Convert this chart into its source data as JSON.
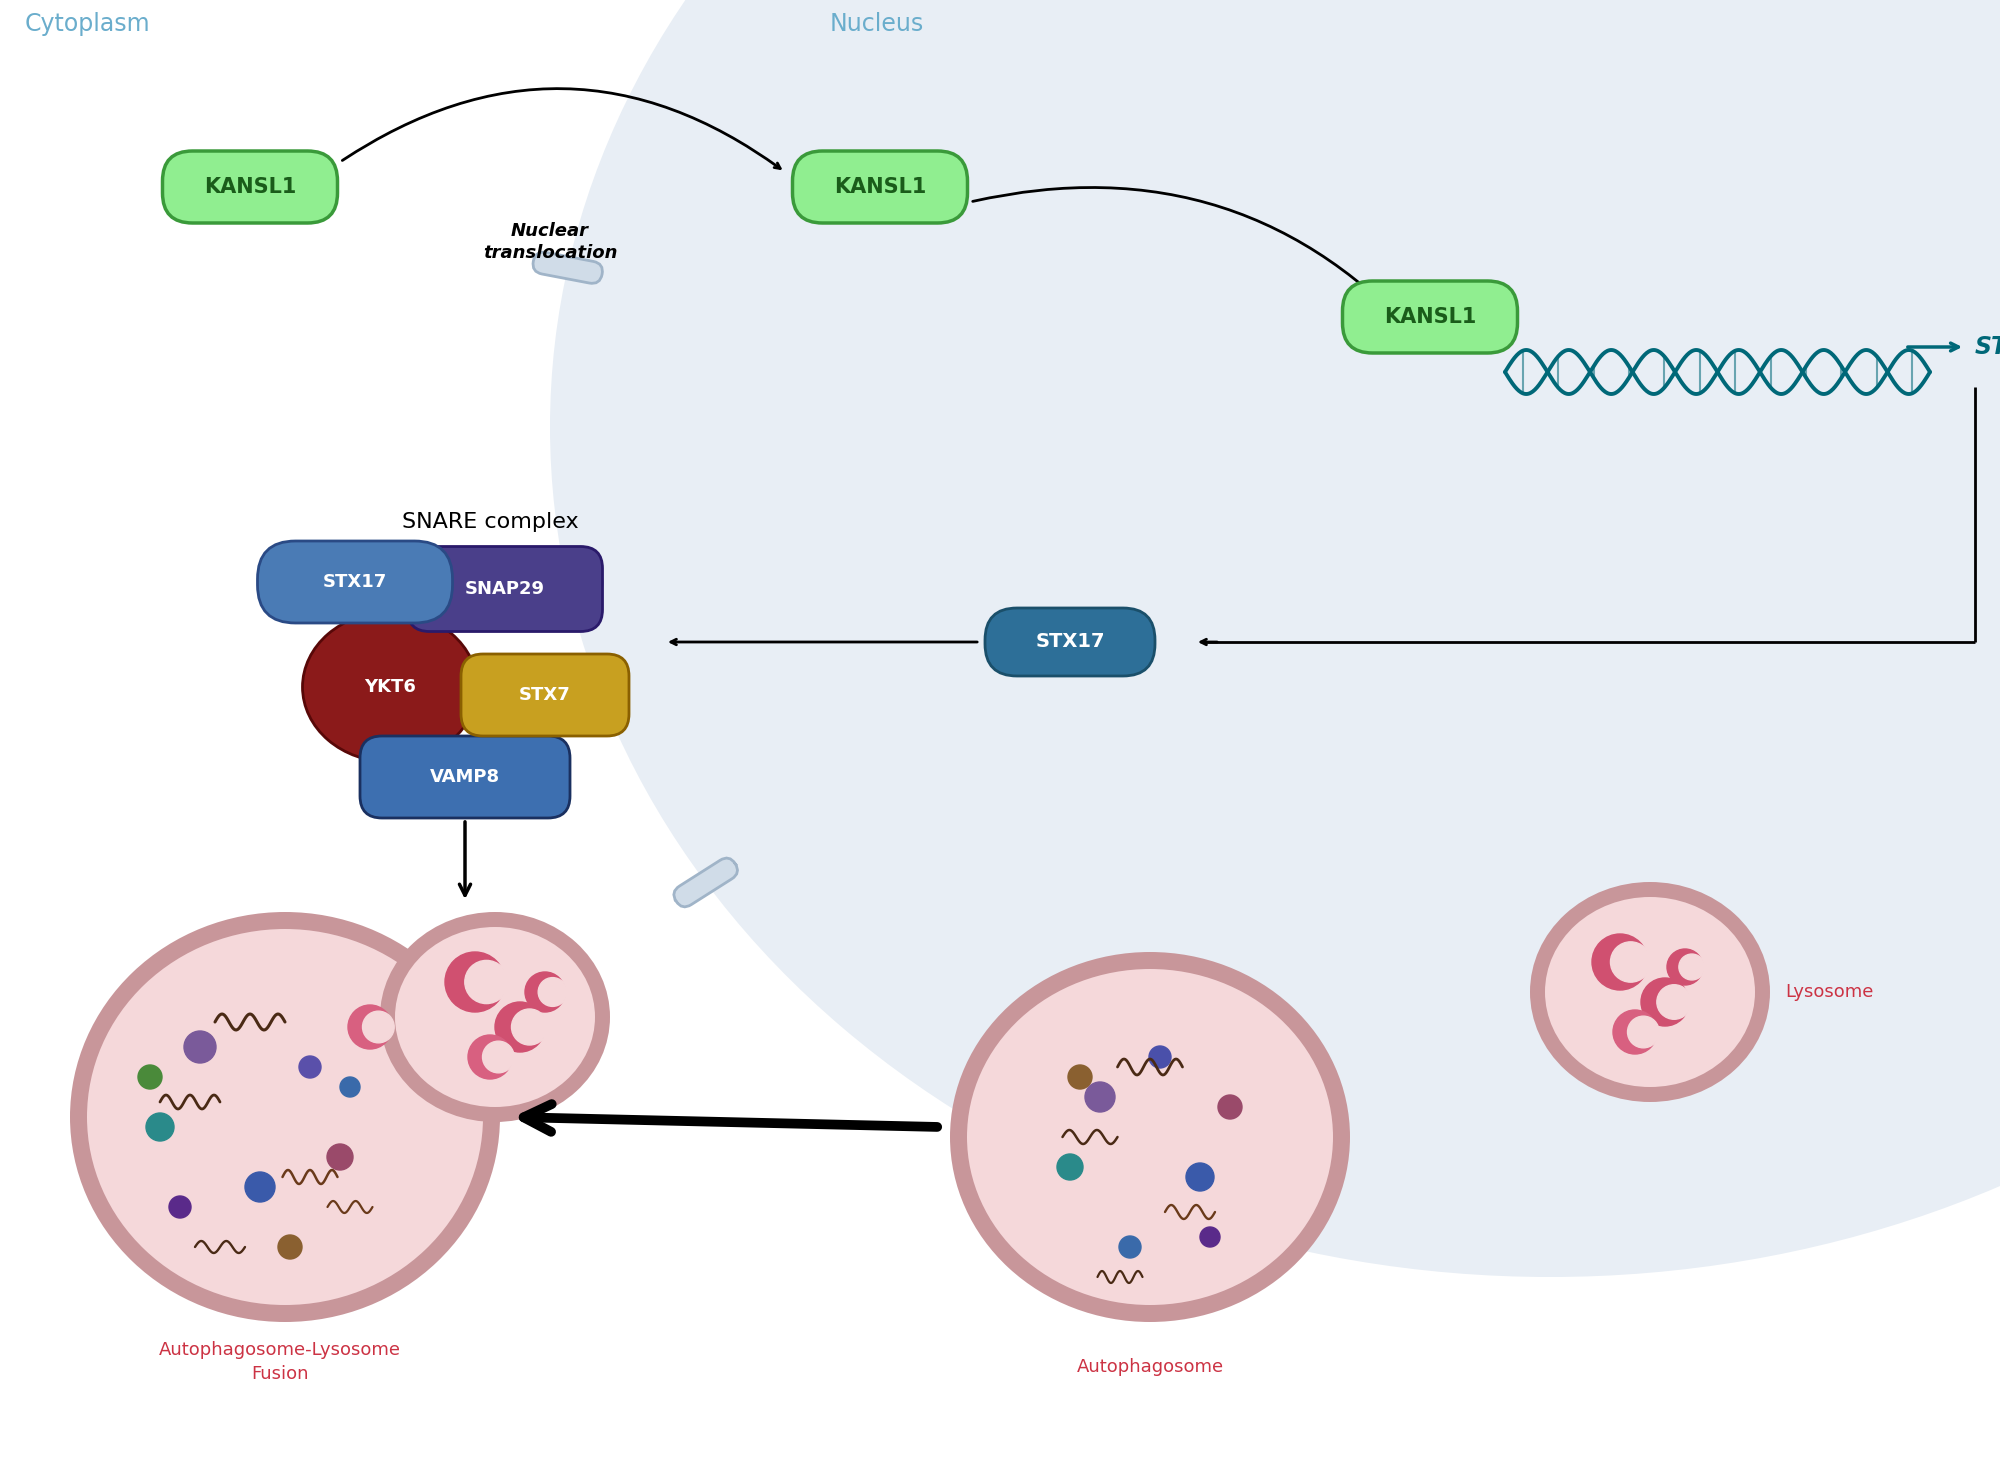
{
  "bg_color": "#ffffff",
  "cytoplasm_label": "Cytoplasm",
  "nucleus_label": "Nucleus",
  "nucleus_fill": "#e8eef5",
  "kansl1_fill": "#90ee90",
  "kansl1_border": "#3a9a3a",
  "kansl1_text": "KANSL1",
  "stx17_node_fill": "#2d6f98",
  "stx17_node_text": "STX17",
  "snare_label": "SNARE complex",
  "stx17_snare_color": "#4a7fb8",
  "snap29_color": "#4a3f8a",
  "ykt6_color": "#8b1a1a",
  "stx7_color": "#c8a020",
  "vamp8_color": "#3d6fb0",
  "lysosome_label": "Lysosome",
  "autophagosome_label": "Autophagosome",
  "fusion_label": "Autophagosome-Lysosome\nFusion",
  "cell_outer_color": "#c8969a",
  "cell_inner_color": "#f5d8da",
  "dna_color": "#006878",
  "stx17_gene_color": "#006878",
  "pill_face": "#d0dce8",
  "pill_edge": "#a0b4c8"
}
